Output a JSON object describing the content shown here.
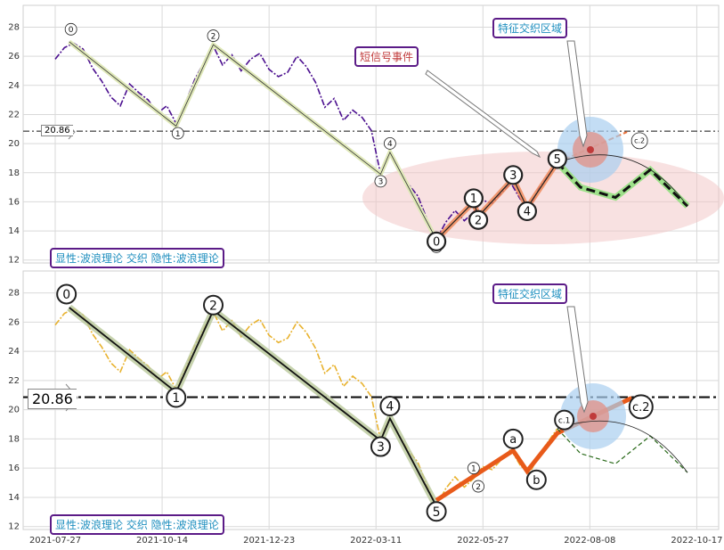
{
  "chart_data": [
    {
      "type": "line",
      "panel": "top",
      "ylim": [
        11.8,
        29.5
      ],
      "yticks": [
        12,
        14,
        16,
        18,
        20,
        22,
        24,
        26,
        28
      ],
      "xticks": [
        "2021-07-27",
        "2021-10-14",
        "2021-12-23",
        "2022-03-11",
        "2022-05-27",
        "2022-08-08",
        "2022-10-17"
      ],
      "grid": true,
      "hline": 20.86,
      "hline_label": "20.86",
      "price_series": [
        {
          "x": 0,
          "y": 25.8
        },
        {
          "x": 4,
          "y": 26.6
        },
        {
          "x": 8,
          "y": 26.9
        },
        {
          "x": 12,
          "y": 26.5
        },
        {
          "x": 16,
          "y": 25.2
        },
        {
          "x": 20,
          "y": 24.3
        },
        {
          "x": 24,
          "y": 23.2
        },
        {
          "x": 28,
          "y": 22.6
        },
        {
          "x": 32,
          "y": 24.1
        },
        {
          "x": 36,
          "y": 23.5
        },
        {
          "x": 40,
          "y": 23.0
        },
        {
          "x": 44,
          "y": 22.1
        },
        {
          "x": 48,
          "y": 22.6
        },
        {
          "x": 52,
          "y": 21.4
        },
        {
          "x": 56,
          "y": 22.8
        },
        {
          "x": 60,
          "y": 24.4
        },
        {
          "x": 64,
          "y": 25.6
        },
        {
          "x": 68,
          "y": 26.7
        },
        {
          "x": 72,
          "y": 25.4
        },
        {
          "x": 76,
          "y": 26.1
        },
        {
          "x": 80,
          "y": 25.0
        },
        {
          "x": 84,
          "y": 25.8
        },
        {
          "x": 88,
          "y": 26.2
        },
        {
          "x": 92,
          "y": 25.1
        },
        {
          "x": 96,
          "y": 24.6
        },
        {
          "x": 100,
          "y": 24.9
        },
        {
          "x": 104,
          "y": 26.0
        },
        {
          "x": 108,
          "y": 25.3
        },
        {
          "x": 112,
          "y": 24.2
        },
        {
          "x": 116,
          "y": 22.5
        },
        {
          "x": 120,
          "y": 23.1
        },
        {
          "x": 124,
          "y": 21.6
        },
        {
          "x": 128,
          "y": 22.3
        },
        {
          "x": 132,
          "y": 21.8
        },
        {
          "x": 136,
          "y": 20.9
        },
        {
          "x": 140,
          "y": 17.9
        },
        {
          "x": 142,
          "y": 18.8
        },
        {
          "x": 144,
          "y": 19.4
        },
        {
          "x": 146,
          "y": 18.8
        },
        {
          "x": 148,
          "y": 18.2
        },
        {
          "x": 152,
          "y": 17.2
        },
        {
          "x": 156,
          "y": 16.4
        },
        {
          "x": 160,
          "y": 14.8
        },
        {
          "x": 164,
          "y": 13.4
        },
        {
          "x": 168,
          "y": 14.6
        },
        {
          "x": 172,
          "y": 15.4
        },
        {
          "x": 176,
          "y": 14.7
        },
        {
          "x": 180,
          "y": 15.3
        },
        {
          "x": 184,
          "y": 16.1
        },
        {
          "x": 188,
          "y": 15.9
        },
        {
          "x": 192,
          "y": 16.6
        },
        {
          "x": 196,
          "y": 17.3
        },
        {
          "x": 200,
          "y": 16.2
        },
        {
          "x": 204,
          "y": 15.6
        },
        {
          "x": 208,
          "y": 16.9
        },
        {
          "x": 212,
          "y": 17.8
        },
        {
          "x": 216,
          "y": 18.7
        }
      ],
      "price_color": "#4b0f8f",
      "wave_points": [
        {
          "x": 6,
          "y": 27.0,
          "label": "0"
        },
        {
          "x": 52,
          "y": 21.2,
          "label": "1"
        },
        {
          "x": 68,
          "y": 26.8,
          "label": "2"
        },
        {
          "x": 140,
          "y": 17.9,
          "label": "3"
        },
        {
          "x": 144,
          "y": 19.4,
          "label": "4"
        },
        {
          "x": 164,
          "y": 13.4,
          "label": "5"
        }
      ],
      "sub_wave_points": [
        {
          "x": 164,
          "y": 13.4,
          "label": "0"
        },
        {
          "x": 180,
          "y": 16.0,
          "label": "1"
        },
        {
          "x": 182,
          "y": 15.0,
          "label": "2"
        },
        {
          "x": 197,
          "y": 17.6,
          "label": "3"
        },
        {
          "x": 203,
          "y": 15.6,
          "label": "4"
        },
        {
          "x": 216,
          "y": 18.7,
          "label": "5"
        }
      ],
      "forecast_points": [
        {
          "x": 216,
          "y": 18.7
        },
        {
          "x": 226,
          "y": 17.0
        },
        {
          "x": 241,
          "y": 16.3
        },
        {
          "x": 256,
          "y": 18.2
        },
        {
          "x": 272,
          "y": 15.7
        }
      ],
      "target_label": "c.2",
      "target_point": {
        "x": 246,
        "y": 20.2
      },
      "annotations": {
        "event_box": "短信号事件",
        "zone_box": "特征交织区域",
        "footer": "显性:波浪理论 交织 隐性:波浪理论"
      }
    },
    {
      "type": "line",
      "panel": "bottom",
      "ylim": [
        11.8,
        29.5
      ],
      "yticks": [
        12,
        14,
        16,
        18,
        20,
        22,
        24,
        26,
        28
      ],
      "xticks": [
        "2021-07-27",
        "2021-10-14",
        "2021-12-23",
        "2022-03-11",
        "2022-05-27",
        "2022-08-08",
        "2022-10-17"
      ],
      "grid": true,
      "hline": 20.86,
      "hline_label": "20.86",
      "price_color": "#e8b22e",
      "wave_points": [
        {
          "x": 6,
          "y": 27.0,
          "label": "0"
        },
        {
          "x": 52,
          "y": 21.2,
          "label": "1"
        },
        {
          "x": 68,
          "y": 26.8,
          "label": "2"
        },
        {
          "x": 140,
          "y": 17.9,
          "label": "3"
        },
        {
          "x": 144,
          "y": 19.4,
          "label": "4"
        },
        {
          "x": 164,
          "y": 13.4,
          "label": "5"
        }
      ],
      "orange_wave": [
        {
          "x": 164,
          "y": 13.8
        },
        {
          "x": 197,
          "y": 17.2
        },
        {
          "x": 203,
          "y": 15.8
        },
        {
          "x": 216,
          "y": 18.4
        },
        {
          "x": 248,
          "y": 20.8
        }
      ],
      "orange_labels": [
        {
          "x": 197,
          "y": 18.0,
          "label": "a"
        },
        {
          "x": 207,
          "y": 15.2,
          "label": "b"
        },
        {
          "x": 219,
          "y": 19.3,
          "label": "c.1"
        },
        {
          "x": 252,
          "y": 20.2,
          "label": "c.2"
        }
      ],
      "annotations": {
        "zone_box": "特征交织区域",
        "footer": "显性:波浪理论 交织 隐性:波浪理论"
      }
    }
  ],
  "labels": {
    "top_hline": "20.86",
    "bottom_hline": "20.86",
    "event_box": "短信号事件",
    "zone_box_top": "特征交织区域",
    "zone_box_bottom": "特征交织区域",
    "footer_top": "显性:波浪理论 交织 隐性:波浪理论",
    "footer_bottom": "显性:波浪理论 交织 隐性:波浪理论"
  }
}
